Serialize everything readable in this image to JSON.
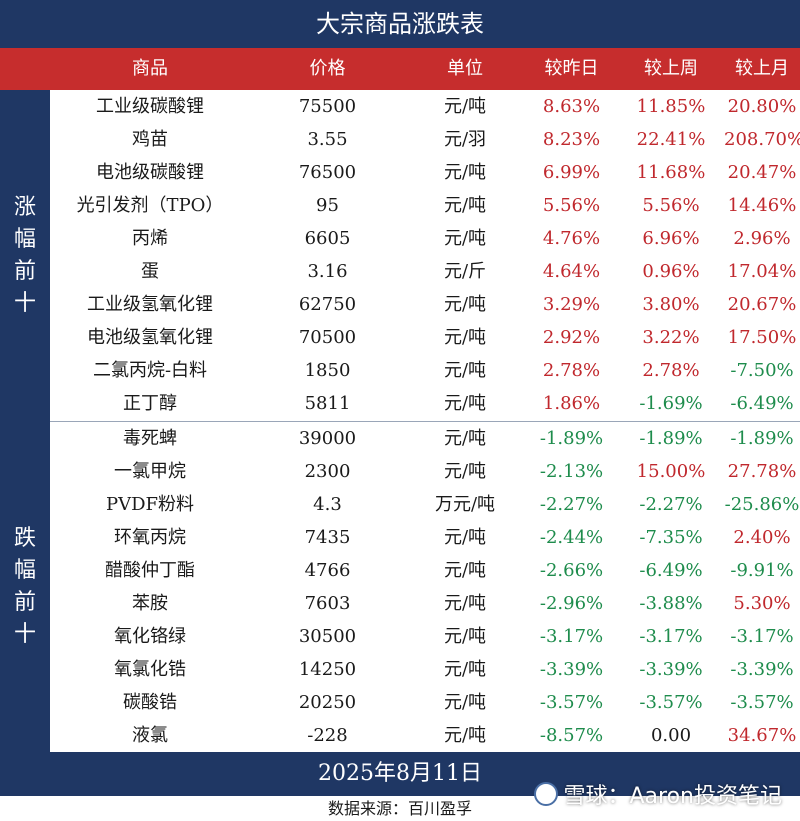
{
  "title": "大宗商品涨跌表",
  "headers": [
    "商品",
    "价格",
    "单位",
    "较昨日",
    "较上周",
    "较上月"
  ],
  "sections": {
    "up_label": "涨幅前十",
    "down_label": "跌幅前十"
  },
  "rows_up": [
    {
      "name": "工业级碳酸锂",
      "price": "75500",
      "unit": "元/吨",
      "day": "8.63%",
      "week": "11.85%",
      "month": "20.80%"
    },
    {
      "name": "鸡苗",
      "price": "3.55",
      "unit": "元/羽",
      "day": "8.23%",
      "week": "22.41%",
      "month": "208.70%"
    },
    {
      "name": "电池级碳酸锂",
      "price": "76500",
      "unit": "元/吨",
      "day": "6.99%",
      "week": "11.68%",
      "month": "20.47%"
    },
    {
      "name": "光引发剂（TPO）",
      "price": "95",
      "unit": "元/吨",
      "day": "5.56%",
      "week": "5.56%",
      "month": "14.46%"
    },
    {
      "name": "丙烯",
      "price": "6605",
      "unit": "元/吨",
      "day": "4.76%",
      "week": "6.96%",
      "month": "2.96%"
    },
    {
      "name": "蛋",
      "price": "3.16",
      "unit": "元/斤",
      "day": "4.64%",
      "week": "0.96%",
      "month": "17.04%"
    },
    {
      "name": "工业级氢氧化锂",
      "price": "62750",
      "unit": "元/吨",
      "day": "3.29%",
      "week": "3.80%",
      "month": "20.67%"
    },
    {
      "name": "电池级氢氧化锂",
      "price": "70500",
      "unit": "元/吨",
      "day": "2.92%",
      "week": "3.22%",
      "month": "17.50%"
    },
    {
      "name": "二氯丙烷-白料",
      "price": "1850",
      "unit": "元/吨",
      "day": "2.78%",
      "week": "2.78%",
      "month": "-7.50%"
    },
    {
      "name": "正丁醇",
      "price": "5811",
      "unit": "元/吨",
      "day": "1.86%",
      "week": "-1.69%",
      "month": "-6.49%"
    }
  ],
  "rows_down": [
    {
      "name": "毒死蜱",
      "price": "39000",
      "unit": "元/吨",
      "day": "-1.89%",
      "week": "-1.89%",
      "month": "-1.89%"
    },
    {
      "name": "一氯甲烷",
      "price": "2300",
      "unit": "元/吨",
      "day": "-2.13%",
      "week": "15.00%",
      "month": "27.78%"
    },
    {
      "name": "PVDF粉料",
      "price": "4.3",
      "unit": "万元/吨",
      "day": "-2.27%",
      "week": "-2.27%",
      "month": "-25.86%"
    },
    {
      "name": "环氧丙烷",
      "price": "7435",
      "unit": "元/吨",
      "day": "-2.44%",
      "week": "-7.35%",
      "month": "2.40%"
    },
    {
      "name": "醋酸仲丁酯",
      "price": "4766",
      "unit": "元/吨",
      "day": "-2.66%",
      "week": "-6.49%",
      "month": "-9.91%"
    },
    {
      "name": "苯胺",
      "price": "7603",
      "unit": "元/吨",
      "day": "-2.96%",
      "week": "-3.88%",
      "month": "5.30%"
    },
    {
      "name": "氧化铬绿",
      "price": "30500",
      "unit": "元/吨",
      "day": "-3.17%",
      "week": "-3.17%",
      "month": "-3.17%"
    },
    {
      "name": "氧氯化锆",
      "price": "14250",
      "unit": "元/吨",
      "day": "-3.39%",
      "week": "-3.39%",
      "month": "-3.39%"
    },
    {
      "name": "碳酸锆",
      "price": "20250",
      "unit": "元/吨",
      "day": "-3.57%",
      "week": "-3.57%",
      "month": "-3.57%"
    },
    {
      "name": "液氯",
      "price": "-228",
      "unit": "元/吨",
      "day": "-8.57%",
      "week": "0.00",
      "month": "34.67%"
    }
  ],
  "date": "2025年8月11日",
  "source": "数据来源：百川盈孚",
  "watermark": "雪球：Aaron投资笔记",
  "colors": {
    "navy": "#1f3764",
    "header_red": "#c62d2d",
    "positive": "#c0282d",
    "negative": "#1e8c4c"
  }
}
